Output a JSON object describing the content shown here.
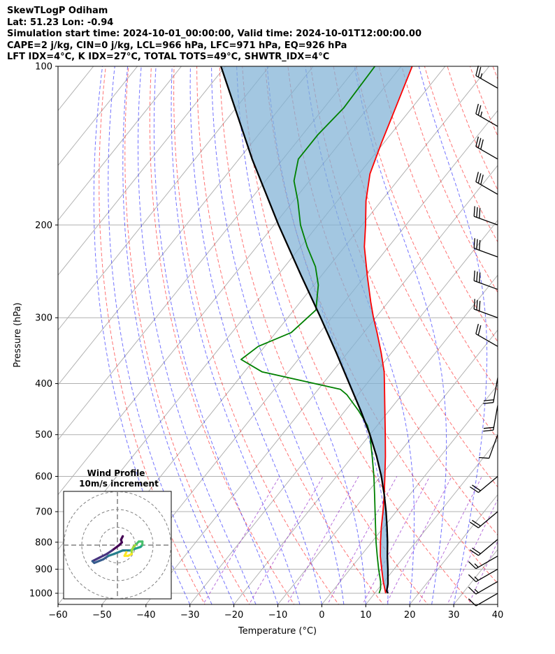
{
  "header": {
    "line1": "SkewTLogP Odiham",
    "line2": "Lat: 51.23   Lon: -0.94",
    "line3": "Simulation start time: 2024-10-01_00:00:00, Valid time: 2024-10-01T12:00:00.00",
    "line4": "CAPE=2 j/kg, CIN=0 j/kg, LCL=966 hPa, LFC=971 hPa, EQ=926 hPa",
    "line5": "LFT IDX=4°C, K IDX=27°C, TOTAL TOTS=49°C, SHWTR_IDX=4°C"
  },
  "chart_data": {
    "type": "line",
    "title": "SkewTLogP Odiham",
    "xlabel": "Temperature (°C)",
    "ylabel": "Pressure (hPa)",
    "xlim": [
      -60,
      40
    ],
    "ylim": [
      1050,
      100
    ],
    "yscale": "log",
    "xticks": [
      -60,
      -50,
      -40,
      -30,
      -20,
      -10,
      0,
      10,
      20,
      30,
      40
    ],
    "xtick_labels": [
      "−60",
      "−50",
      "−40",
      "−30",
      "−20",
      "−10",
      "0",
      "10",
      "20",
      "30",
      "40"
    ],
    "yticks": [
      1000,
      900,
      800,
      700,
      600,
      500,
      400,
      300,
      200,
      100
    ],
    "ytick_labels": [
      "1000",
      "900",
      "800",
      "700",
      "600",
      "500",
      "400",
      "300",
      "200",
      "100"
    ],
    "grid": true,
    "series": [
      {
        "name": "",
        "color": "#ff0000",
        "points": [
          [
            1000,
            12.5
          ],
          [
            950,
            9.8
          ],
          [
            900,
            7.2
          ],
          [
            850,
            4.5
          ],
          [
            800,
            2.0
          ],
          [
            750,
            -0.5
          ],
          [
            700,
            -3.0
          ],
          [
            650,
            -5.8
          ],
          [
            600,
            -9.0
          ],
          [
            550,
            -12.5
          ],
          [
            500,
            -16.5
          ],
          [
            450,
            -21.0
          ],
          [
            400,
            -26.0
          ],
          [
            380,
            -28.2
          ],
          [
            350,
            -32.3
          ],
          [
            320,
            -37.0
          ],
          [
            300,
            -40.5
          ],
          [
            280,
            -44.0
          ],
          [
            250,
            -49.5
          ],
          [
            220,
            -55.5
          ],
          [
            200,
            -59.2
          ],
          [
            180,
            -63.5
          ],
          [
            160,
            -67.5
          ],
          [
            140,
            -70.5
          ],
          [
            120,
            -73.7
          ],
          [
            100,
            -77.5
          ]
        ]
      },
      {
        "name": "",
        "color": "#008000",
        "points": [
          [
            1000,
            11.0
          ],
          [
            980,
            10.5
          ],
          [
            950,
            9.2
          ],
          [
            900,
            6.5
          ],
          [
            850,
            3.8
          ],
          [
            800,
            1.0
          ],
          [
            750,
            -1.8
          ],
          [
            700,
            -4.8
          ],
          [
            650,
            -8.0
          ],
          [
            600,
            -11.5
          ],
          [
            550,
            -15.5
          ],
          [
            500,
            -20.0
          ],
          [
            480,
            -22.3
          ],
          [
            450,
            -27.0
          ],
          [
            420,
            -32.5
          ],
          [
            410,
            -35.0
          ],
          [
            380,
            -56.0
          ],
          [
            360,
            -63.0
          ],
          [
            340,
            -61.5
          ],
          [
            320,
            -56.5
          ],
          [
            290,
            -55.0
          ],
          [
            260,
            -59.0
          ],
          [
            240,
            -63.0
          ],
          [
            220,
            -68.5
          ],
          [
            200,
            -74.0
          ],
          [
            180,
            -79.0
          ],
          [
            165,
            -83.5
          ],
          [
            150,
            -86.5
          ],
          [
            135,
            -86.5
          ],
          [
            120,
            -85.5
          ],
          [
            100,
            -86.0
          ]
        ]
      },
      {
        "name": "",
        "color": "#000000",
        "points": [
          [
            1000,
            13.0
          ],
          [
            990,
            12.3
          ],
          [
            960,
            11.3
          ],
          [
            900,
            8.6
          ],
          [
            850,
            6.1
          ],
          [
            800,
            3.6
          ],
          [
            750,
            0.8
          ],
          [
            700,
            -2.3
          ],
          [
            650,
            -5.8
          ],
          [
            600,
            -9.8
          ],
          [
            550,
            -14.5
          ],
          [
            500,
            -20.0
          ],
          [
            450,
            -26.5
          ],
          [
            400,
            -34.0
          ],
          [
            350,
            -42.5
          ],
          [
            300,
            -52.5
          ],
          [
            250,
            -64.5
          ],
          [
            200,
            -79.0
          ],
          [
            150,
            -97.0
          ],
          [
            100,
            -121.0
          ]
        ]
      }
    ],
    "wind_barbs": [
      {
        "p": 110,
        "speed_kt": 25,
        "dir_deg": 300
      },
      {
        "p": 130,
        "speed_kt": 25,
        "dir_deg": 300
      },
      {
        "p": 150,
        "speed_kt": 30,
        "dir_deg": 300
      },
      {
        "p": 175,
        "speed_kt": 30,
        "dir_deg": 300
      },
      {
        "p": 200,
        "speed_kt": 30,
        "dir_deg": 290
      },
      {
        "p": 230,
        "speed_kt": 30,
        "dir_deg": 290
      },
      {
        "p": 265,
        "speed_kt": 30,
        "dir_deg": 290
      },
      {
        "p": 300,
        "speed_kt": 30,
        "dir_deg": 290
      },
      {
        "p": 340,
        "speed_kt": 20,
        "dir_deg": 300
      },
      {
        "p": 390,
        "speed_kt": 20,
        "dir_deg": 190
      },
      {
        "p": 440,
        "speed_kt": 20,
        "dir_deg": 190
      },
      {
        "p": 500,
        "speed_kt": 10,
        "dir_deg": 200
      },
      {
        "p": 600,
        "speed_kt": 20,
        "dir_deg": 230
      },
      {
        "p": 700,
        "speed_kt": 20,
        "dir_deg": 230
      },
      {
        "p": 790,
        "speed_kt": 20,
        "dir_deg": 230
      },
      {
        "p": 850,
        "speed_kt": 15,
        "dir_deg": 240
      },
      {
        "p": 900,
        "speed_kt": 15,
        "dir_deg": 240
      },
      {
        "p": 950,
        "speed_kt": 15,
        "dir_deg": 240
      },
      {
        "p": 1000,
        "speed_kt": 10,
        "dir_deg": 240
      }
    ],
    "inset": {
      "title": "Wind Profile",
      "subtitle": "10m/s increment",
      "rings_ms": [
        10,
        20,
        30
      ],
      "hodograph": [
        [
          3,
          5
        ],
        [
          2,
          3
        ],
        [
          2.5,
          1.5
        ],
        [
          1,
          0
        ],
        [
          -3,
          -3
        ],
        [
          -6,
          -5
        ],
        [
          -10,
          -7
        ],
        [
          -14,
          -9
        ],
        [
          -13,
          -10
        ],
        [
          -8,
          -8
        ],
        [
          -5,
          -6
        ],
        [
          -2,
          -5
        ],
        [
          3,
          -3
        ],
        [
          7,
          -3
        ],
        [
          10,
          -2
        ],
        [
          13,
          -1
        ],
        [
          14,
          0
        ],
        [
          14,
          2
        ],
        [
          12,
          2
        ],
        [
          10,
          0
        ],
        [
          9,
          -1
        ],
        [
          8,
          -3
        ],
        [
          8,
          -5
        ],
        [
          6,
          -6
        ],
        [
          4,
          -6
        ],
        [
          5,
          -4
        ]
      ]
    }
  }
}
